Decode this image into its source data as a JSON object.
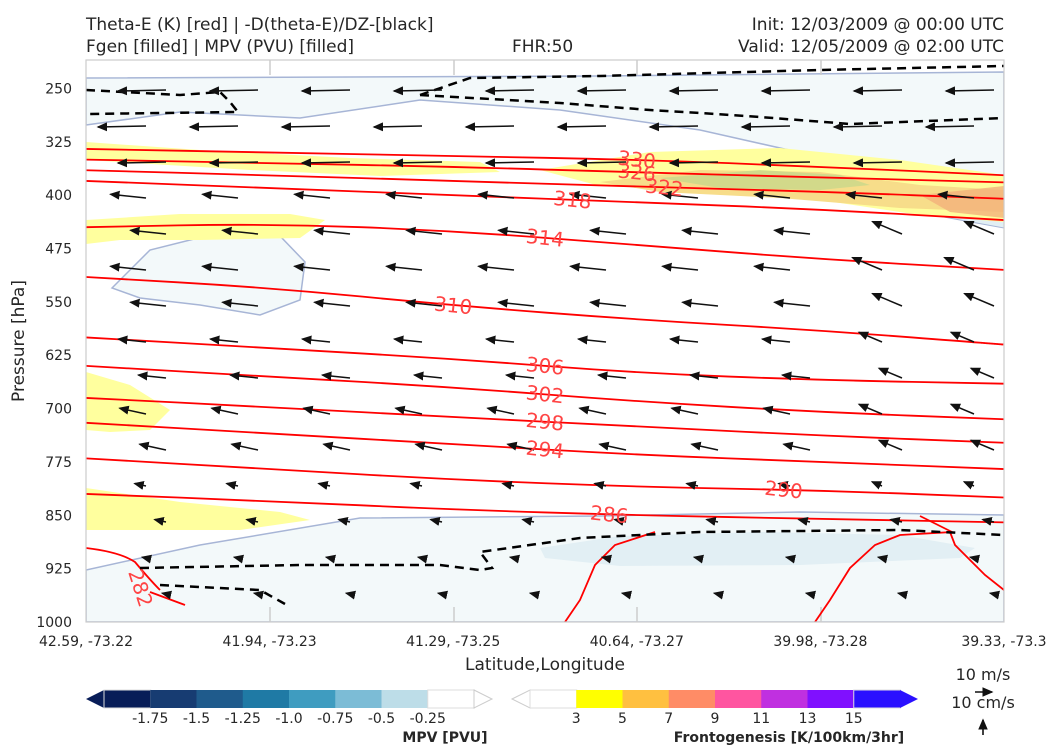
{
  "header": {
    "title_left_1": "Theta-E (K) [red] | -D(theta-E)/DZ-[black]",
    "title_left_2": "Fgen [filled] | MPV (PVU) [filled]",
    "fhr": "FHR:50",
    "init": "Init: 12/03/2009 @ 00:00 UTC",
    "valid": "Valid: 12/05/2009 @ 02:00 UTC"
  },
  "chart_data": {
    "type": "cross-section",
    "xlabel": "Latitude,Longitude",
    "ylabel": "Pressure [hPa]",
    "x_ticks": [
      "42.59, -73.22",
      "41.94, -73.23",
      "41.29, -73.25",
      "40.64, -73.27",
      "39.98, -73.28",
      "39.33, -73.3"
    ],
    "y_ticks": [
      250,
      325,
      400,
      475,
      550,
      625,
      700,
      775,
      850,
      925,
      1000
    ],
    "ylim": [
      1000,
      210
    ],
    "theta_e_contours": [
      {
        "value": 330,
        "label": "330",
        "x": [
          0,
          0.2,
          0.4,
          0.6,
          0.8,
          1.0
        ],
        "y": [
          335,
          340,
          345,
          350,
          360,
          372
        ]
      },
      {
        "value": 326,
        "label": "326",
        "x": [
          0,
          0.2,
          0.4,
          0.6,
          0.8,
          1.0
        ],
        "y": [
          350,
          355,
          360,
          368,
          375,
          382
        ]
      },
      {
        "value": 322,
        "label": "322",
        "x": [
          0,
          0.2,
          0.4,
          0.6,
          0.8,
          1.0
        ],
        "y": [
          365,
          372,
          380,
          388,
          395,
          405
        ]
      },
      {
        "value": 318,
        "label": "318",
        "x": [
          0,
          0.2,
          0.4,
          0.6,
          0.8,
          1.0
        ],
        "y": [
          380,
          390,
          400,
          410,
          420,
          435
        ]
      },
      {
        "value": 314,
        "label": "314",
        "x": [
          0,
          0.2,
          0.4,
          0.6,
          0.8,
          1.0
        ],
        "y": [
          445,
          440,
          450,
          470,
          490,
          505
        ]
      },
      {
        "value": 310,
        "label": "310",
        "x": [
          0,
          0.2,
          0.4,
          0.6,
          0.8,
          1.0
        ],
        "y": [
          515,
          530,
          555,
          575,
          590,
          610
        ]
      },
      {
        "value": 306,
        "label": "306",
        "x": [
          0,
          0.2,
          0.4,
          0.6,
          0.8,
          1.0
        ],
        "y": [
          600,
          615,
          630,
          650,
          660,
          665
        ]
      },
      {
        "value": 302,
        "label": "302",
        "x": [
          0,
          0.2,
          0.4,
          0.6,
          0.8,
          1.0
        ],
        "y": [
          640,
          655,
          670,
          690,
          705,
          715
        ]
      },
      {
        "value": 298,
        "label": "298",
        "x": [
          0,
          0.2,
          0.4,
          0.6,
          0.8,
          1.0
        ],
        "y": [
          685,
          698,
          712,
          725,
          738,
          748
        ]
      },
      {
        "value": 294,
        "label": "294",
        "x": [
          0,
          0.2,
          0.4,
          0.6,
          0.8,
          1.0
        ],
        "y": [
          720,
          735,
          750,
          765,
          775,
          785
        ]
      },
      {
        "value": 290,
        "label": "290",
        "x": [
          0,
          0.2,
          0.4,
          0.6,
          0.8,
          1.0
        ],
        "y": [
          770,
          785,
          800,
          810,
          815,
          825
        ]
      },
      {
        "value": 286,
        "label": "286",
        "x": [
          0,
          0.2,
          0.4,
          0.6,
          0.8,
          1.0
        ],
        "y": [
          820,
          830,
          842,
          850,
          855,
          860
        ]
      }
    ],
    "contour_282_label": "282",
    "mpv_colorbar": {
      "title": "MPV [PVU]",
      "levels": [
        "-1.75",
        "-1.5",
        "-1.25",
        "-1.0",
        "-0.75",
        "-0.5",
        "-0.25"
      ],
      "colors": [
        "#081d58",
        "#173c72",
        "#1f5b8c",
        "#1f7aa5",
        "#3f9cc0",
        "#7cbcd6",
        "#bddde8",
        "#ffffff"
      ]
    },
    "fgen_colorbar": {
      "title": "Frontogenesis [K/100km/3hr]",
      "levels": [
        "3",
        "5",
        "7",
        "9",
        "11",
        "13",
        "15"
      ],
      "colors": [
        "#ffffff",
        "#ffff00",
        "#ffc040",
        "#ff8c66",
        "#ff55a0",
        "#c030e0",
        "#8010ff",
        "#2a10ff"
      ]
    },
    "wind_ref_horizontal": "10 m/s",
    "wind_ref_vertical": "10 cm/s"
  }
}
